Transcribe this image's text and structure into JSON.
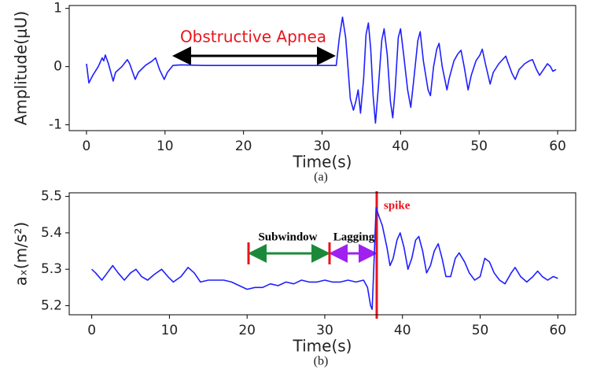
{
  "chart_data": [
    {
      "type": "line",
      "caption": "(a)",
      "x_label": "Time(s)",
      "y_label": "Amplitude(μU)",
      "color": "#1f1fff",
      "annotations": [
        "Obstructive Apnea"
      ],
      "xlim": [
        -2.2,
        62.3
      ],
      "ylim": [
        -1.1,
        1.05
      ],
      "xticks": [
        0,
        10,
        20,
        30,
        40,
        50,
        60
      ],
      "yticks": [
        -1,
        0,
        1
      ],
      "x": [
        0,
        0.3,
        0.8,
        1.5,
        2,
        2.2,
        2.4,
        2.8,
        3.4,
        3.7,
        4.5,
        5.2,
        5.5,
        6.2,
        6.6,
        7.5,
        8.4,
        8.8,
        9.3,
        9.9,
        10.3,
        11,
        12,
        15,
        20,
        25,
        30,
        31.8,
        32.2,
        32.6,
        33,
        33.3,
        33.6,
        34,
        34.3,
        34.6,
        34.9,
        35.3,
        35.6,
        35.9,
        36.2,
        36.5,
        36.8,
        37.2,
        37.6,
        37.9,
        38.3,
        38.7,
        39,
        39.3,
        39.7,
        40,
        40.4,
        40.9,
        41.3,
        41.7,
        42.2,
        42.5,
        42.9,
        43.5,
        43.8,
        44.2,
        44.6,
        44.9,
        45.3,
        45.9,
        46.2,
        46.8,
        47.3,
        47.7,
        48.1,
        48.6,
        49,
        49.6,
        50.1,
        50.4,
        50.8,
        51.4,
        51.8,
        52.5,
        53.4,
        53.6,
        54.2,
        54.6,
        55.1,
        55.8,
        56.4,
        56.8,
        57.3,
        57.7,
        58.2,
        58.7,
        59.1,
        59.4,
        59.8
      ],
      "values": [
        0.05,
        -0.28,
        -0.15,
        0,
        0.15,
        0.1,
        0.2,
        0.05,
        -0.25,
        -0.1,
        0,
        0.12,
        0.05,
        -0.22,
        -0.1,
        0.02,
        0.1,
        0.15,
        -0.05,
        -0.22,
        -0.1,
        0.02,
        0.03,
        0.02,
        0.02,
        0.02,
        0.02,
        0.02,
        0.5,
        0.85,
        0.5,
        0,
        -0.55,
        -0.75,
        -0.6,
        -0.4,
        -0.8,
        -0.2,
        0.55,
        0.75,
        0.3,
        -0.5,
        -0.97,
        -0.3,
        0.45,
        0.65,
        0.2,
        -0.6,
        -0.88,
        -0.4,
        0.5,
        0.65,
        0.2,
        -0.4,
        -0.7,
        -0.2,
        0.45,
        0.6,
        0.1,
        -0.4,
        -0.5,
        0,
        0.3,
        0.4,
        0,
        -0.4,
        -0.2,
        0.1,
        0.22,
        0.28,
        0,
        -0.4,
        -0.15,
        0.1,
        0.2,
        0.3,
        0.05,
        -0.3,
        -0.1,
        0.05,
        0.18,
        0.1,
        -0.12,
        -0.22,
        -0.05,
        0.05,
        0.1,
        0.12,
        -0.05,
        -0.15,
        -0.05,
        0.05,
        0,
        -0.08,
        -0.05
      ]
    },
    {
      "type": "line",
      "caption": "(b)",
      "x_label": "Time(s)",
      "y_label": "aₓ(m/s²)",
      "color": "#1f1fff",
      "annotations": [
        "spike",
        "Subwindow",
        "Lagging"
      ],
      "xlim": [
        -2.9,
        62.3
      ],
      "ylim": [
        5.175,
        5.51
      ],
      "xticks": [
        0,
        10,
        20,
        30,
        40,
        50,
        60
      ],
      "yticks": [
        5.2,
        5.3,
        5.4,
        5.5
      ],
      "x": [
        0,
        0.5,
        1.3,
        2,
        2.7,
        3.4,
        4.2,
        5,
        5.7,
        6.4,
        7.2,
        8,
        9,
        9.8,
        10.5,
        11.5,
        12.4,
        13.2,
        14,
        15,
        16,
        17,
        18,
        19,
        20,
        21,
        22,
        23,
        24,
        25,
        26,
        27,
        28,
        29,
        30,
        31,
        32,
        33,
        34,
        35,
        35.5,
        35.9,
        36.1,
        36.3,
        36.6,
        36.9,
        37.4,
        38,
        38.4,
        38.8,
        39.3,
        39.7,
        40.2,
        40.7,
        41.2,
        41.7,
        42.1,
        42.6,
        43.1,
        43.6,
        44.1,
        44.6,
        45.1,
        45.6,
        46.2,
        46.8,
        47.3,
        48,
        48.6,
        49.3,
        50,
        50.6,
        51.2,
        51.8,
        52.5,
        53.2,
        54,
        54.5,
        55.2,
        56,
        56.8,
        57.4,
        58,
        58.7,
        59.4,
        60
      ],
      "values": [
        5.3,
        5.29,
        5.27,
        5.29,
        5.31,
        5.29,
        5.27,
        5.29,
        5.3,
        5.28,
        5.27,
        5.285,
        5.3,
        5.28,
        5.265,
        5.28,
        5.305,
        5.29,
        5.265,
        5.27,
        5.27,
        5.27,
        5.265,
        5.255,
        5.245,
        5.25,
        5.25,
        5.26,
        5.255,
        5.265,
        5.26,
        5.27,
        5.265,
        5.265,
        5.27,
        5.265,
        5.265,
        5.27,
        5.265,
        5.27,
        5.25,
        5.2,
        5.19,
        5.3,
        5.47,
        5.45,
        5.42,
        5.36,
        5.31,
        5.33,
        5.38,
        5.4,
        5.36,
        5.3,
        5.33,
        5.38,
        5.39,
        5.35,
        5.29,
        5.31,
        5.35,
        5.37,
        5.33,
        5.28,
        5.28,
        5.33,
        5.345,
        5.32,
        5.29,
        5.27,
        5.28,
        5.33,
        5.32,
        5.29,
        5.27,
        5.26,
        5.29,
        5.305,
        5.28,
        5.265,
        5.28,
        5.295,
        5.28,
        5.27,
        5.28,
        5.275
      ]
    }
  ]
}
